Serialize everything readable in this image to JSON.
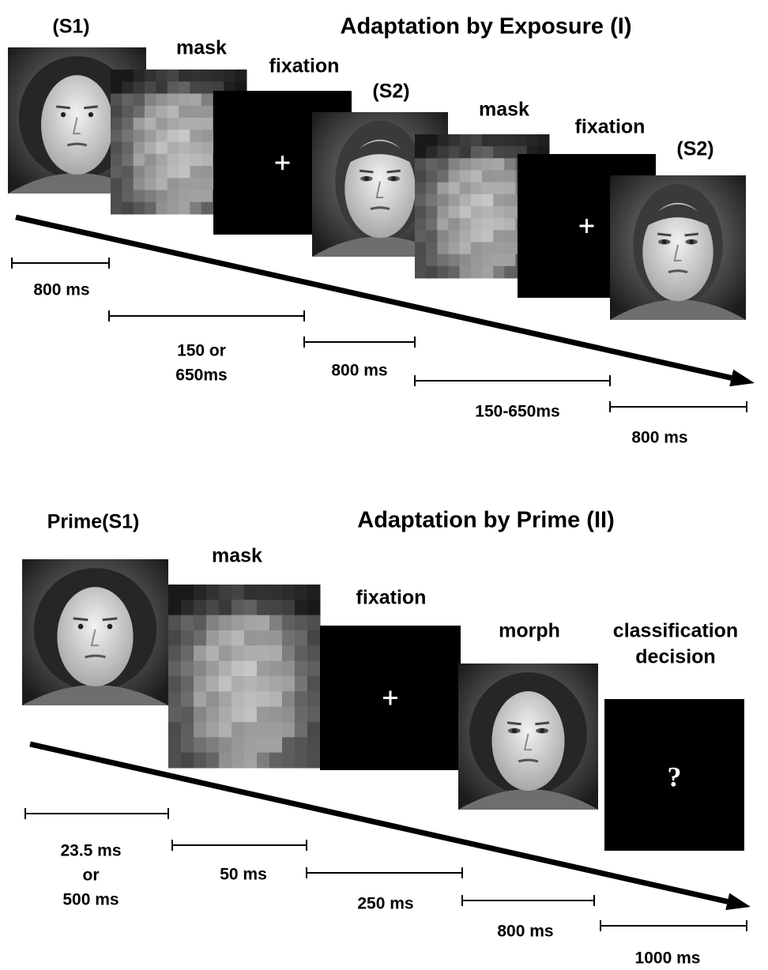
{
  "panels": [
    {
      "title": "Adaptation by Exposure (I)",
      "labels": [
        [
          "(S1)"
        ],
        [
          "mask"
        ],
        [
          "fixation"
        ],
        [
          "(S2)"
        ],
        [
          "mask"
        ],
        [
          "fixation"
        ],
        [
          "(S2)"
        ]
      ],
      "durations": [
        [
          "800 ms"
        ],
        [
          "150 or",
          "650ms"
        ],
        [
          "800 ms"
        ],
        [
          "150-650ms"
        ],
        [
          "800 ms"
        ]
      ]
    },
    {
      "title": "Adaptation by Prime (II)",
      "labels": [
        [
          "Prime(S1)"
        ],
        [
          "mask"
        ],
        [
          "fixation"
        ],
        [
          "morph"
        ],
        [
          "classification",
          "decision"
        ]
      ],
      "durations": [
        [
          "23.5 ms",
          "or",
          "500 ms"
        ],
        [
          "50 ms"
        ],
        [
          "250 ms"
        ],
        [
          "800 ms"
        ],
        [
          "1000 ms"
        ]
      ],
      "symbol": "?"
    }
  ]
}
